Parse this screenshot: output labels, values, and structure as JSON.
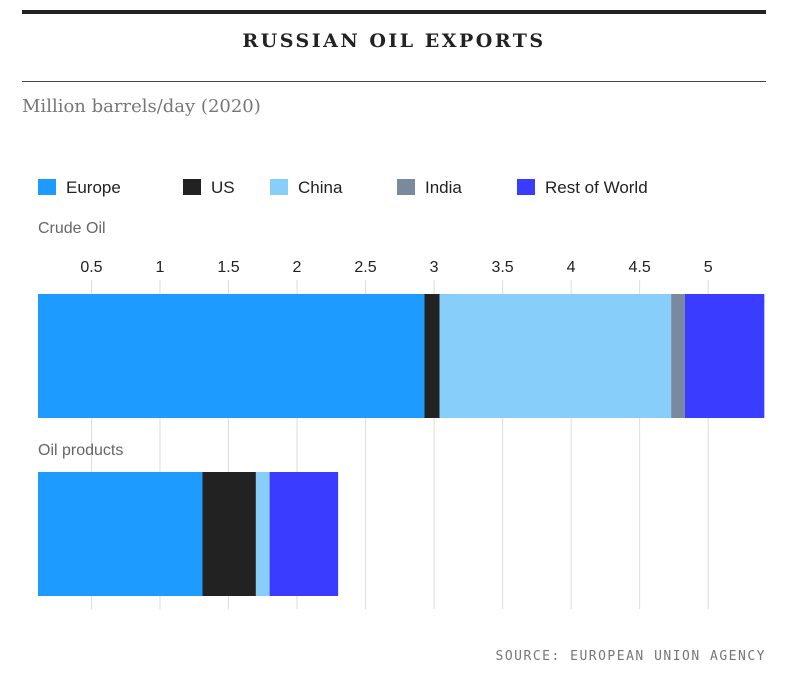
{
  "header": {
    "title": "RUSSIAN OIL EXPORTS",
    "subtitle": "Million barrels/day (2020)"
  },
  "footer": {
    "source": "SOURCE: EUROPEAN UNION AGENCY"
  },
  "colors": {
    "Europe": "#1e9bff",
    "US": "#222222",
    "China": "#87cefa",
    "India": "#7a8a9e",
    "Rest of World": "#3a3cff"
  },
  "chart_data": {
    "type": "bar",
    "orientation": "horizontal",
    "stacked": true,
    "categories": [
      "Crude Oil",
      "Oil products"
    ],
    "series": [
      {
        "name": "Europe",
        "values": [
          2.82,
          1.2
        ]
      },
      {
        "name": "US",
        "values": [
          0.11,
          0.39
        ]
      },
      {
        "name": "China",
        "values": [
          1.69,
          0.1
        ]
      },
      {
        "name": "India",
        "values": [
          0.1,
          0.0
        ]
      },
      {
        "name": "Rest of World",
        "values": [
          0.58,
          0.5
        ]
      }
    ],
    "xticks": [
      "0.5",
      "1",
      "1.5",
      "2",
      "2.5",
      "3",
      "3.5",
      "4",
      "4.5",
      "5"
    ],
    "xlim": [
      0.11,
      5.32
    ],
    "grid": true,
    "legend_position": "top"
  }
}
